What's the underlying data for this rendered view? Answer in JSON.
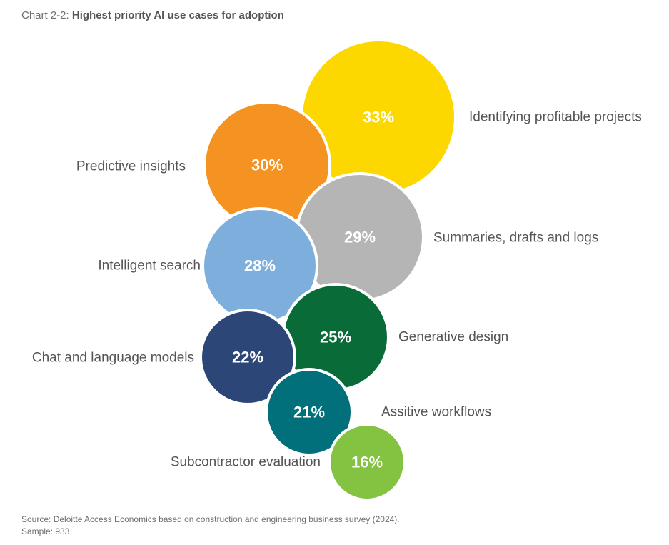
{
  "title": {
    "prefix": "Chart 2-2:",
    "main": "Highest priority AI use cases for adoption"
  },
  "chart_data": {
    "type": "bubble",
    "unit": "%",
    "series": [
      {
        "name": "Identifying profitable projects",
        "value": 33,
        "label": "33%",
        "color": "#FCD700",
        "label_side": "right"
      },
      {
        "name": "Predictive insights",
        "value": 30,
        "label": "30%",
        "color": "#F59322",
        "label_side": "left"
      },
      {
        "name": "Summaries, drafts and logs",
        "value": 29,
        "label": "29%",
        "color": "#B5B5B5",
        "label_side": "right"
      },
      {
        "name": "Intelligent search",
        "value": 28,
        "label": "28%",
        "color": "#7EAEDC",
        "label_side": "left"
      },
      {
        "name": "Generative design",
        "value": 25,
        "label": "25%",
        "color": "#086B38",
        "label_side": "right"
      },
      {
        "name": "Chat and language models",
        "value": 22,
        "label": "22%",
        "color": "#2C4677",
        "label_side": "left"
      },
      {
        "name": "Assitive workflows",
        "value": 21,
        "label": "21%",
        "color": "#02707B",
        "label_side": "right"
      },
      {
        "name": "Subcontractor evaluation",
        "value": 16,
        "label": "16%",
        "color": "#84C242",
        "label_side": "left"
      }
    ]
  },
  "footnotes": {
    "source": "Source: Deloitte Access Economics based on construction and engineering business survey (2024).",
    "sample": "Sample: 933"
  }
}
